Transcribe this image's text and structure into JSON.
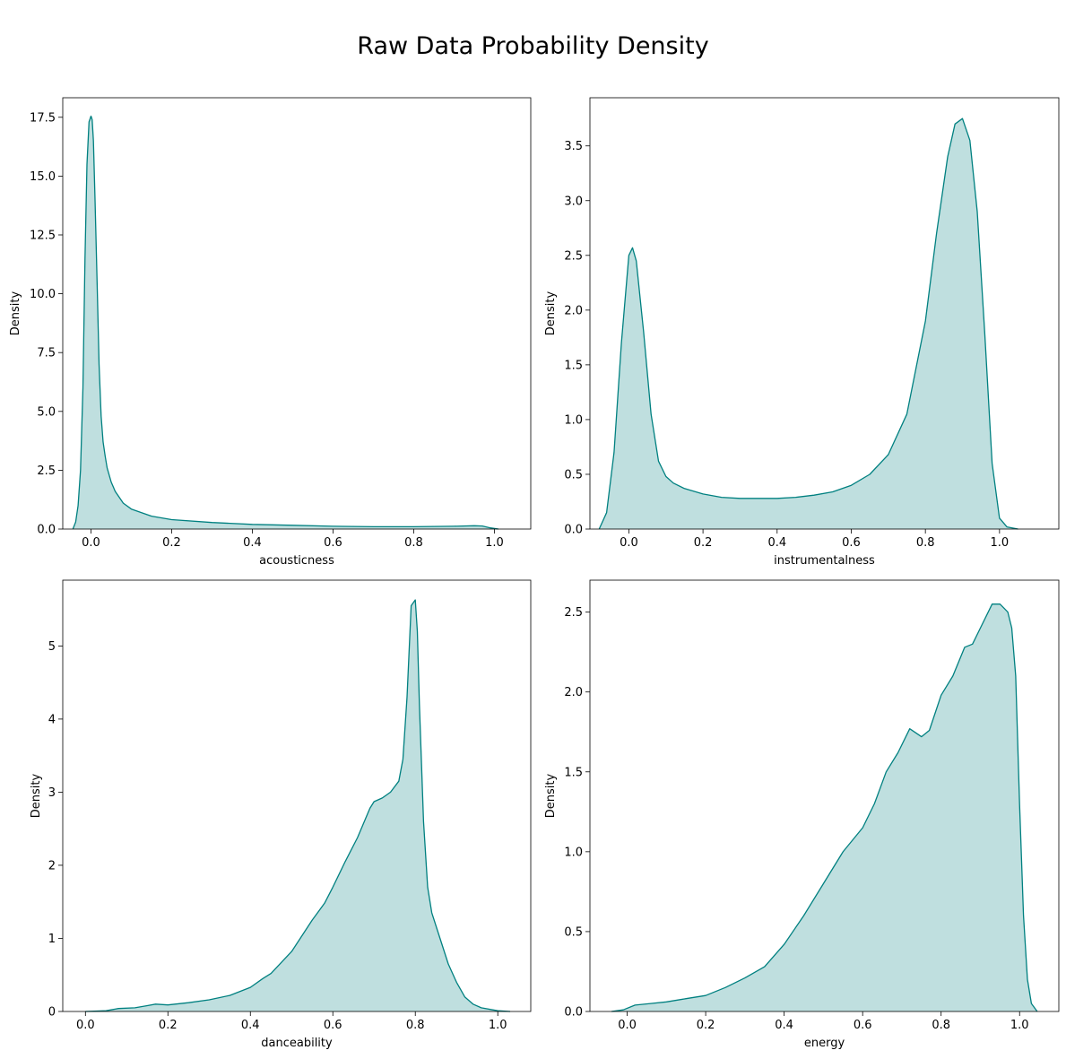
{
  "figure": {
    "title": "Raw Data Probability Density",
    "line_color": "#008080",
    "fill_color": "#008080",
    "fill_opacity": 0.25
  },
  "chart_data": [
    {
      "type": "area",
      "xlabel": "acousticness",
      "ylabel": "Density",
      "xlim": [
        -0.07,
        1.09
      ],
      "ylim": [
        0,
        18.33
      ],
      "xticks": [
        0.0,
        0.2,
        0.4,
        0.6,
        0.8,
        1.0
      ],
      "xtick_labels": [
        "0.0",
        "0.2",
        "0.4",
        "0.6",
        "0.8",
        "1.0"
      ],
      "yticks": [
        0,
        2.5,
        5.0,
        7.5,
        10.0,
        12.5,
        15.0,
        17.5
      ],
      "ytick_labels": [
        "0.0",
        "2.5",
        "5.0",
        "7.5",
        "10.0",
        "12.5",
        "15.0",
        "17.5"
      ],
      "series": [
        {
          "x": [
            -0.045,
            -0.038,
            -0.032,
            -0.026,
            -0.02,
            -0.015,
            -0.01,
            -0.005,
            0.0,
            0.003,
            0.006,
            0.01,
            0.015,
            0.02,
            0.025,
            0.03,
            0.035,
            0.04,
            0.05,
            0.06,
            0.08,
            0.1,
            0.15,
            0.2,
            0.3,
            0.4,
            0.5,
            0.6,
            0.7,
            0.8,
            0.9,
            0.95,
            0.97,
            0.99,
            1.01
          ],
          "y": [
            0.0,
            0.3,
            1.0,
            2.5,
            6.0,
            11.5,
            15.5,
            17.3,
            17.55,
            17.4,
            16.5,
            14.0,
            10.5,
            7.0,
            4.8,
            3.7,
            3.1,
            2.6,
            2.0,
            1.6,
            1.1,
            0.85,
            0.55,
            0.4,
            0.28,
            0.2,
            0.16,
            0.12,
            0.1,
            0.1,
            0.12,
            0.14,
            0.13,
            0.05,
            0.0
          ]
        }
      ]
    },
    {
      "type": "area",
      "xlabel": "instrumentalness",
      "ylabel": "Density",
      "xlim": [
        -0.105,
        1.16
      ],
      "ylim": [
        0,
        3.94
      ],
      "xticks": [
        0.0,
        0.2,
        0.4,
        0.6,
        0.8,
        1.0
      ],
      "xtick_labels": [
        "0.0",
        "0.2",
        "0.4",
        "0.6",
        "0.8",
        "1.0"
      ],
      "yticks": [
        0,
        0.5,
        1.0,
        1.5,
        2.0,
        2.5,
        3.0,
        3.5
      ],
      "ytick_labels": [
        "0.0",
        "0.5",
        "1.0",
        "1.5",
        "2.0",
        "2.5",
        "3.0",
        "3.5"
      ],
      "series": [
        {
          "x": [
            -0.08,
            -0.06,
            -0.04,
            -0.02,
            0.0,
            0.01,
            0.02,
            0.04,
            0.06,
            0.08,
            0.1,
            0.12,
            0.15,
            0.2,
            0.25,
            0.3,
            0.35,
            0.4,
            0.45,
            0.5,
            0.55,
            0.6,
            0.65,
            0.7,
            0.75,
            0.8,
            0.83,
            0.86,
            0.88,
            0.9,
            0.92,
            0.94,
            0.96,
            0.98,
            1.0,
            1.02,
            1.05
          ],
          "y": [
            0.0,
            0.15,
            0.7,
            1.7,
            2.5,
            2.57,
            2.45,
            1.8,
            1.05,
            0.62,
            0.48,
            0.42,
            0.37,
            0.32,
            0.29,
            0.28,
            0.28,
            0.28,
            0.29,
            0.31,
            0.34,
            0.4,
            0.5,
            0.68,
            1.05,
            1.9,
            2.7,
            3.4,
            3.7,
            3.75,
            3.55,
            2.9,
            1.8,
            0.6,
            0.1,
            0.02,
            0.0
          ]
        }
      ]
    },
    {
      "type": "area",
      "xlabel": "danceability",
      "ylabel": "Density",
      "xlim": [
        -0.055,
        1.08
      ],
      "ylim": [
        0,
        5.9
      ],
      "xticks": [
        0.0,
        0.2,
        0.4,
        0.6,
        0.8,
        1.0
      ],
      "xtick_labels": [
        "0.0",
        "0.2",
        "0.4",
        "0.6",
        "0.8",
        "1.0"
      ],
      "yticks": [
        0,
        1,
        2,
        3,
        4,
        5
      ],
      "ytick_labels": [
        "0",
        "1",
        "2",
        "3",
        "4",
        "5"
      ],
      "series": [
        {
          "x": [
            0.0,
            0.05,
            0.08,
            0.12,
            0.15,
            0.17,
            0.2,
            0.25,
            0.3,
            0.35,
            0.4,
            0.43,
            0.45,
            0.5,
            0.55,
            0.58,
            0.6,
            0.63,
            0.66,
            0.69,
            0.7,
            0.72,
            0.74,
            0.76,
            0.77,
            0.78,
            0.79,
            0.8,
            0.805,
            0.81,
            0.82,
            0.83,
            0.84,
            0.86,
            0.88,
            0.9,
            0.92,
            0.94,
            0.96,
            1.0,
            1.03
          ],
          "y": [
            0.0,
            0.01,
            0.04,
            0.05,
            0.08,
            0.1,
            0.09,
            0.12,
            0.16,
            0.22,
            0.33,
            0.45,
            0.52,
            0.82,
            1.25,
            1.48,
            1.7,
            2.05,
            2.38,
            2.78,
            2.87,
            2.92,
            3.0,
            3.15,
            3.45,
            4.3,
            5.55,
            5.63,
            5.2,
            4.2,
            2.6,
            1.7,
            1.35,
            1.0,
            0.65,
            0.4,
            0.2,
            0.1,
            0.05,
            0.01,
            0.0
          ]
        }
      ]
    },
    {
      "type": "area",
      "xlabel": "energy",
      "ylabel": "Density",
      "xlim": [
        -0.095,
        1.1
      ],
      "ylim": [
        0,
        2.7
      ],
      "xticks": [
        0.0,
        0.2,
        0.4,
        0.6,
        0.8,
        1.0
      ],
      "xtick_labels": [
        "0.0",
        "0.2",
        "0.4",
        "0.6",
        "0.8",
        "1.0"
      ],
      "yticks": [
        0,
        0.5,
        1.0,
        1.5,
        2.0,
        2.5
      ],
      "ytick_labels": [
        "0.0",
        "0.5",
        "1.0",
        "1.5",
        "2.0",
        "2.5"
      ],
      "series": [
        {
          "x": [
            -0.04,
            -0.01,
            0.02,
            0.06,
            0.1,
            0.15,
            0.2,
            0.25,
            0.3,
            0.35,
            0.4,
            0.45,
            0.5,
            0.55,
            0.6,
            0.63,
            0.66,
            0.69,
            0.72,
            0.75,
            0.77,
            0.8,
            0.83,
            0.86,
            0.88,
            0.9,
            0.93,
            0.95,
            0.97,
            0.98,
            0.99,
            1.0,
            1.01,
            1.02,
            1.03,
            1.045
          ],
          "y": [
            0.0,
            0.01,
            0.04,
            0.05,
            0.06,
            0.08,
            0.1,
            0.15,
            0.21,
            0.28,
            0.42,
            0.6,
            0.8,
            1.0,
            1.15,
            1.3,
            1.5,
            1.62,
            1.77,
            1.72,
            1.76,
            1.98,
            2.1,
            2.28,
            2.3,
            2.4,
            2.55,
            2.55,
            2.5,
            2.4,
            2.1,
            1.3,
            0.6,
            0.2,
            0.05,
            0.0
          ]
        }
      ]
    }
  ]
}
